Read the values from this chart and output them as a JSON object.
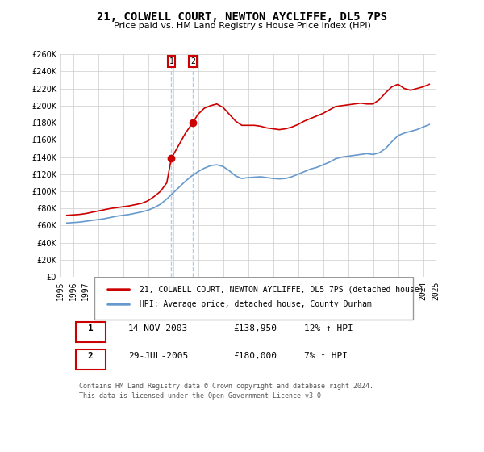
{
  "title": "21, COLWELL COURT, NEWTON AYCLIFFE, DL5 7PS",
  "subtitle": "Price paid vs. HM Land Registry's House Price Index (HPI)",
  "xlabel": "",
  "ylabel": "",
  "ylim": [
    0,
    260000
  ],
  "yticks": [
    0,
    20000,
    40000,
    60000,
    80000,
    100000,
    120000,
    140000,
    160000,
    180000,
    200000,
    220000,
    240000,
    260000
  ],
  "ytick_labels": [
    "£0",
    "£20K",
    "£40K",
    "£60K",
    "£80K",
    "£100K",
    "£120K",
    "£140K",
    "£160K",
    "£180K",
    "£200K",
    "£220K",
    "£240K",
    "£260K"
  ],
  "line1_color": "#cc0000",
  "line2_color": "#6699cc",
  "background_color": "#ffffff",
  "grid_color": "#cccccc",
  "transaction1": {
    "label": "1",
    "date": "14-NOV-2003",
    "price": 138950,
    "hpi_change": "12% ↑ HPI",
    "x_year": 2003.87
  },
  "transaction2": {
    "label": "2",
    "date": "29-JUL-2005",
    "price": 180000,
    "hpi_change": "7% ↑ HPI",
    "x_year": 2005.57
  },
  "legend1_label": "21, COLWELL COURT, NEWTON AYCLIFFE, DL5 7PS (detached house)",
  "legend2_label": "HPI: Average price, detached house, County Durham",
  "footer1": "Contains HM Land Registry data © Crown copyright and database right 2024.",
  "footer2": "This data is licensed under the Open Government Licence v3.0.",
  "hpi_data_x": [
    1995.5,
    1996.0,
    1996.5,
    1997.0,
    1997.5,
    1998.0,
    1998.5,
    1999.0,
    1999.5,
    2000.0,
    2000.5,
    2001.0,
    2001.5,
    2002.0,
    2002.5,
    2003.0,
    2003.5,
    2004.0,
    2004.5,
    2005.0,
    2005.5,
    2006.0,
    2006.5,
    2007.0,
    2007.5,
    2008.0,
    2008.5,
    2009.0,
    2009.5,
    2010.0,
    2010.5,
    2011.0,
    2011.5,
    2012.0,
    2012.5,
    2013.0,
    2013.5,
    2014.0,
    2014.5,
    2015.0,
    2015.5,
    2016.0,
    2016.5,
    2017.0,
    2017.5,
    2018.0,
    2018.5,
    2019.0,
    2019.5,
    2020.0,
    2020.5,
    2021.0,
    2021.5,
    2022.0,
    2022.5,
    2023.0,
    2023.5,
    2024.0,
    2024.5
  ],
  "hpi_data_y": [
    63000,
    63500,
    64000,
    65000,
    66000,
    67000,
    68000,
    69500,
    71000,
    72000,
    73000,
    74500,
    76000,
    78000,
    81000,
    85000,
    91000,
    98000,
    105000,
    112000,
    118000,
    123000,
    127000,
    130000,
    131000,
    129000,
    124000,
    118000,
    115000,
    116000,
    116500,
    117000,
    116000,
    115000,
    114500,
    115000,
    117000,
    120000,
    123000,
    126000,
    128000,
    131000,
    134000,
    138000,
    140000,
    141000,
    142000,
    143000,
    144000,
    143000,
    145000,
    150000,
    158000,
    165000,
    168000,
    170000,
    172000,
    175000,
    178000
  ],
  "price_data_x": [
    1995.5,
    1996.0,
    1996.5,
    1997.0,
    1997.5,
    1998.0,
    1998.5,
    1999.0,
    1999.5,
    2000.0,
    2000.5,
    2001.0,
    2001.5,
    2002.0,
    2002.5,
    2003.0,
    2003.5,
    2003.87,
    2004.0,
    2004.5,
    2005.0,
    2005.57,
    2006.0,
    2006.5,
    2007.0,
    2007.5,
    2008.0,
    2008.5,
    2009.0,
    2009.5,
    2010.0,
    2010.5,
    2011.0,
    2011.5,
    2012.0,
    2012.5,
    2013.0,
    2013.5,
    2014.0,
    2014.5,
    2015.0,
    2015.5,
    2016.0,
    2016.5,
    2017.0,
    2017.5,
    2018.0,
    2018.5,
    2019.0,
    2019.5,
    2020.0,
    2020.5,
    2021.0,
    2021.5,
    2022.0,
    2022.5,
    2023.0,
    2023.5,
    2024.0,
    2024.5
  ],
  "price_data_y": [
    72000,
    72500,
    73000,
    74000,
    75500,
    77000,
    78500,
    80000,
    81000,
    82000,
    83000,
    84500,
    86000,
    89000,
    94000,
    100000,
    110000,
    138950,
    142000,
    155000,
    168000,
    180000,
    190000,
    197000,
    200000,
    202000,
    198000,
    190000,
    182000,
    177000,
    177000,
    177000,
    176000,
    174000,
    173000,
    172000,
    173000,
    175000,
    178000,
    182000,
    185000,
    188000,
    191000,
    195000,
    199000,
    200000,
    201000,
    202000,
    203000,
    202000,
    202000,
    207000,
    215000,
    222000,
    225000,
    220000,
    218000,
    220000,
    222000,
    225000
  ],
  "x_tick_years": [
    1995,
    1996,
    1997,
    1998,
    1999,
    2000,
    2001,
    2002,
    2003,
    2004,
    2005,
    2006,
    2007,
    2008,
    2009,
    2010,
    2011,
    2012,
    2013,
    2014,
    2015,
    2016,
    2017,
    2018,
    2019,
    2020,
    2021,
    2022,
    2023,
    2024,
    2025
  ]
}
